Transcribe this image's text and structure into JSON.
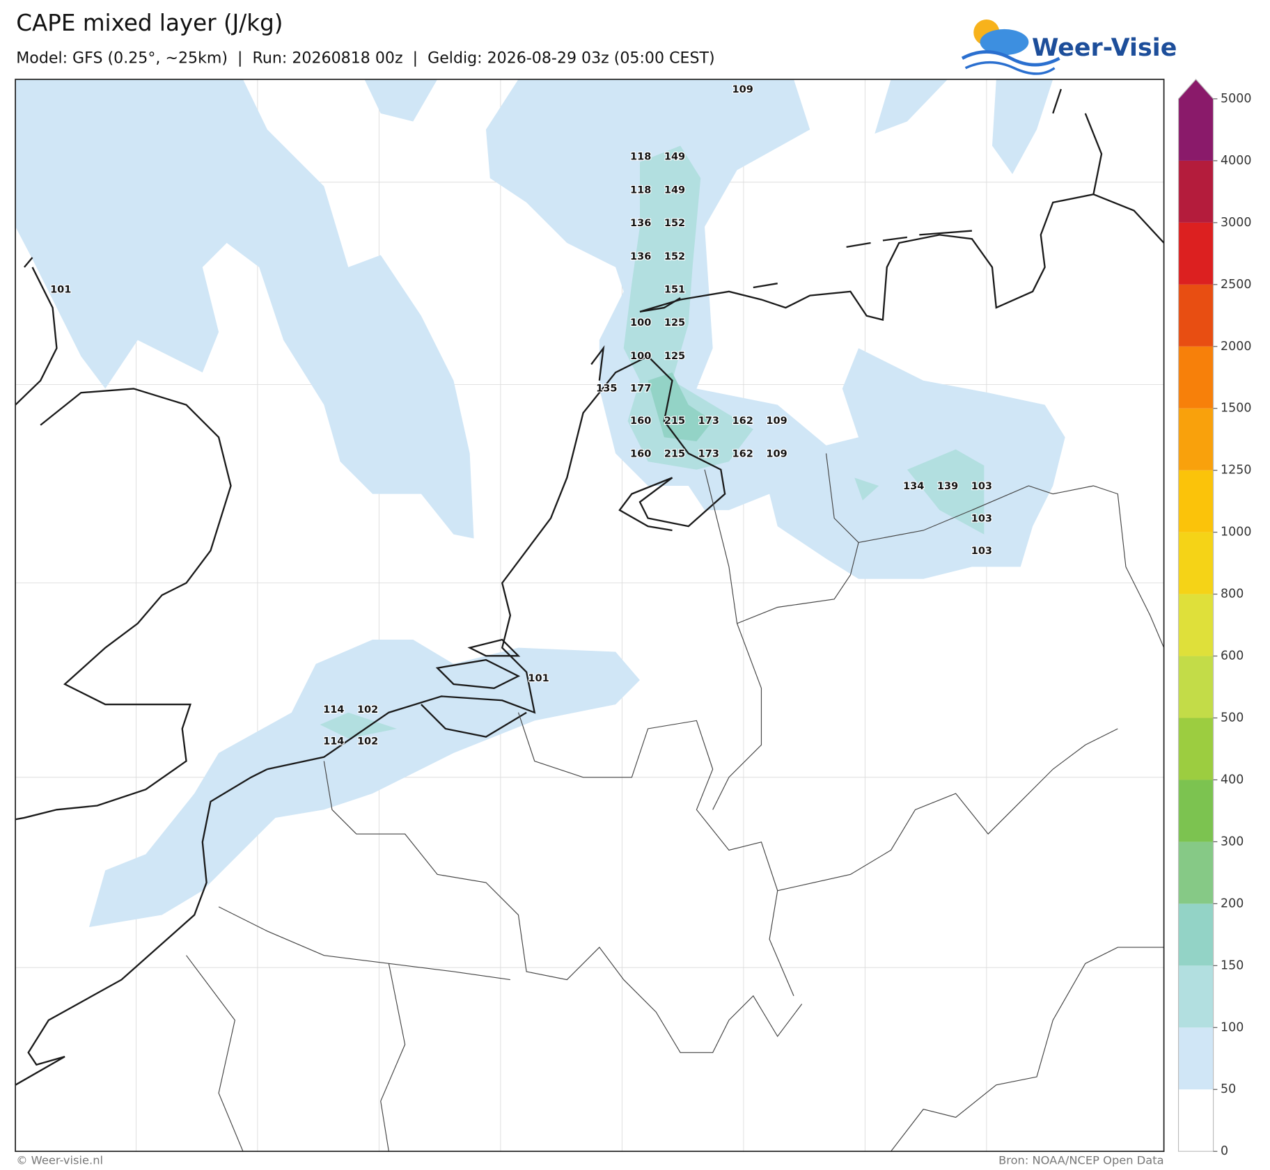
{
  "title": "CAPE mixed layer (J/kg)",
  "subtitle": "Model: GFS (0.25°, ~25km)  |  Run: 20260818 00z  |  Geldig: 2026-08-29 03z (05:00 CEST)",
  "logo": "Weer-Visie",
  "footer_left": "© Weer-visie.nl",
  "footer_right": "Bron: NOAA/NCEP Open Data",
  "colorbar": {
    "levels": [
      0,
      50,
      100,
      150,
      200,
      300,
      400,
      500,
      600,
      800,
      1000,
      1250,
      1500,
      2000,
      2500,
      3000,
      4000,
      5000
    ],
    "colors": [
      "#ffffff",
      "#d0e6f6",
      "#b2dfe0",
      "#93d3c6",
      "#86c986",
      "#7cc350",
      "#9ccd40",
      "#c3dc48",
      "#dfe03a",
      "#f5d317",
      "#fbc30a",
      "#f9a10c",
      "#f7800a",
      "#e84e12",
      "#dc2020",
      "#b41c3c",
      "#8a1a6a"
    ],
    "extend_color": "#8a1a6a"
  },
  "point_labels": [
    109,
    118,
    149,
    118,
    149,
    136,
    152,
    136,
    152,
    151,
    100,
    125,
    100,
    125,
    135,
    177,
    160,
    215,
    173,
    162,
    109,
    160,
    215,
    173,
    162,
    109,
    101,
    134,
    139,
    103,
    103,
    103,
    101,
    114,
    102,
    114,
    102
  ]
}
